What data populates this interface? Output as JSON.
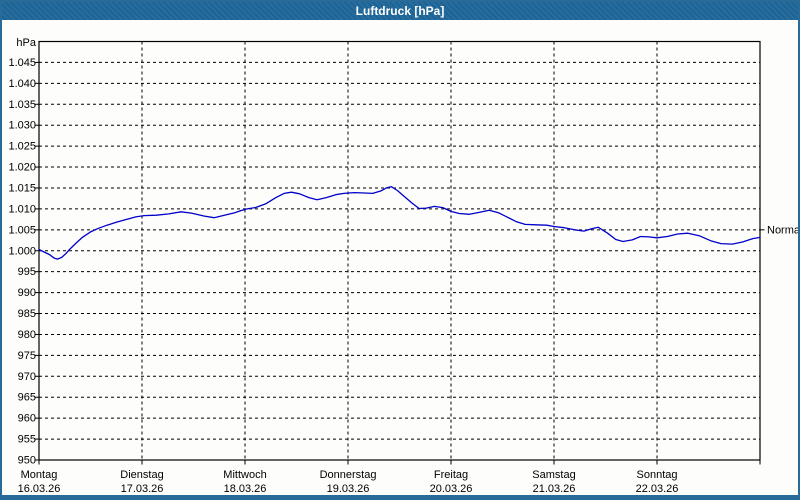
{
  "window": {
    "title": "Luftdruck [hPa]"
  },
  "colors": {
    "titlebar_bg": "#1e6799",
    "titlebar_text": "#ffffff",
    "window_border": "#2a6a99",
    "plot_bg": "#fdfdfc",
    "grid": "#000000",
    "axis": "#000000",
    "curve": "#0000c8",
    "label_text": "#000000"
  },
  "chart_data": {
    "type": "line",
    "title": "Luftdruck [hPa]",
    "unit_label": "hPa",
    "ylabel": "hPa",
    "xlabel": "",
    "ylim": [
      950,
      1050
    ],
    "x_range_days": [
      0,
      7
    ],
    "grid": "dashed",
    "legend_position": "none",
    "yticks": [
      {
        "value": 950,
        "label": "950"
      },
      {
        "value": 955,
        "label": "955"
      },
      {
        "value": 960,
        "label": "960"
      },
      {
        "value": 965,
        "label": "965"
      },
      {
        "value": 970,
        "label": "970"
      },
      {
        "value": 975,
        "label": "975"
      },
      {
        "value": 980,
        "label": "980"
      },
      {
        "value": 985,
        "label": "985"
      },
      {
        "value": 990,
        "label": "990"
      },
      {
        "value": 995,
        "label": "995"
      },
      {
        "value": 1000,
        "label": "1.000"
      },
      {
        "value": 1005,
        "label": "1.005"
      },
      {
        "value": 1010,
        "label": "1.010"
      },
      {
        "value": 1015,
        "label": "1.015"
      },
      {
        "value": 1020,
        "label": "1.020"
      },
      {
        "value": 1025,
        "label": "1.025"
      },
      {
        "value": 1030,
        "label": "1.030"
      },
      {
        "value": 1035,
        "label": "1.035"
      },
      {
        "value": 1040,
        "label": "1.040"
      },
      {
        "value": 1045,
        "label": "1.045"
      }
    ],
    "days": [
      {
        "name": "Montag",
        "date": "16.03.26"
      },
      {
        "name": "Dienstag",
        "date": "17.03.26"
      },
      {
        "name": "Mittwoch",
        "date": "18.03.26"
      },
      {
        "name": "Donnerstag",
        "date": "19.03.26"
      },
      {
        "name": "Freitag",
        "date": "20.03.26"
      },
      {
        "name": "Samstag",
        "date": "21.03.26"
      },
      {
        "name": "Sonntag",
        "date": "22.03.26"
      }
    ],
    "normal_marker": {
      "label": "Normal",
      "value": 1005
    },
    "series": [
      {
        "name": "Luftdruck",
        "unit": "hPa",
        "points": [
          [
            0.0,
            1000.3
          ],
          [
            0.05,
            999.7
          ],
          [
            0.1,
            999.1
          ],
          [
            0.15,
            998.2
          ],
          [
            0.18,
            998.0
          ],
          [
            0.22,
            998.4
          ],
          [
            0.26,
            999.3
          ],
          [
            0.3,
            1000.4
          ],
          [
            0.35,
            1001.6
          ],
          [
            0.42,
            1003.2
          ],
          [
            0.5,
            1004.5
          ],
          [
            0.58,
            1005.4
          ],
          [
            0.66,
            1006.1
          ],
          [
            0.75,
            1006.8
          ],
          [
            0.85,
            1007.5
          ],
          [
            0.94,
            1008.1
          ],
          [
            1.02,
            1008.4
          ],
          [
            1.14,
            1008.5
          ],
          [
            1.26,
            1008.8
          ],
          [
            1.38,
            1009.3
          ],
          [
            1.48,
            1009.0
          ],
          [
            1.6,
            1008.3
          ],
          [
            1.7,
            1007.9
          ],
          [
            1.8,
            1008.5
          ],
          [
            1.9,
            1009.1
          ],
          [
            1.96,
            1009.6
          ],
          [
            2.02,
            1010.0
          ],
          [
            2.1,
            1010.3
          ],
          [
            2.2,
            1011.2
          ],
          [
            2.3,
            1012.7
          ],
          [
            2.38,
            1013.7
          ],
          [
            2.45,
            1014.0
          ],
          [
            2.53,
            1013.6
          ],
          [
            2.62,
            1012.7
          ],
          [
            2.7,
            1012.2
          ],
          [
            2.79,
            1012.7
          ],
          [
            2.88,
            1013.4
          ],
          [
            2.96,
            1013.7
          ],
          [
            3.06,
            1013.9
          ],
          [
            3.16,
            1013.8
          ],
          [
            3.24,
            1013.7
          ],
          [
            3.32,
            1014.3
          ],
          [
            3.38,
            1015.1
          ],
          [
            3.42,
            1015.3
          ],
          [
            3.48,
            1014.4
          ],
          [
            3.55,
            1012.9
          ],
          [
            3.62,
            1011.4
          ],
          [
            3.69,
            1010.1
          ],
          [
            3.76,
            1010.2
          ],
          [
            3.84,
            1010.6
          ],
          [
            3.92,
            1010.3
          ],
          [
            4.0,
            1009.4
          ],
          [
            4.08,
            1008.9
          ],
          [
            4.18,
            1008.7
          ],
          [
            4.28,
            1009.2
          ],
          [
            4.37,
            1009.7
          ],
          [
            4.46,
            1009.1
          ],
          [
            4.55,
            1008.0
          ],
          [
            4.64,
            1006.9
          ],
          [
            4.72,
            1006.3
          ],
          [
            4.82,
            1006.2
          ],
          [
            4.93,
            1006.1
          ],
          [
            5.0,
            1005.8
          ],
          [
            5.1,
            1005.5
          ],
          [
            5.2,
            1005.0
          ],
          [
            5.29,
            1004.7
          ],
          [
            5.37,
            1005.3
          ],
          [
            5.43,
            1005.6
          ],
          [
            5.52,
            1004.2
          ],
          [
            5.6,
            1002.7
          ],
          [
            5.67,
            1002.2
          ],
          [
            5.76,
            1002.6
          ],
          [
            5.84,
            1003.4
          ],
          [
            5.92,
            1003.3
          ],
          [
            6.0,
            1003.1
          ],
          [
            6.1,
            1003.4
          ],
          [
            6.2,
            1004.0
          ],
          [
            6.3,
            1004.2
          ],
          [
            6.41,
            1003.6
          ],
          [
            6.52,
            1002.4
          ],
          [
            6.62,
            1001.7
          ],
          [
            6.73,
            1001.6
          ],
          [
            6.83,
            1002.1
          ],
          [
            6.93,
            1002.9
          ],
          [
            7.0,
            1003.2
          ]
        ]
      }
    ]
  }
}
